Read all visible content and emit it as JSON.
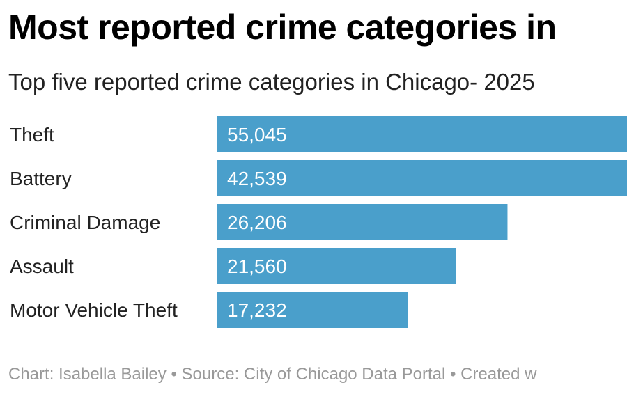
{
  "header": {
    "title": "Most reported crime categories in",
    "subtitle": "Top five reported crime categories in Chicago- 2025"
  },
  "footer": {
    "text": "Chart: Isabella Bailey • Source: City of Chicago Data Portal • Created w"
  },
  "colors": {
    "bar": "#4a9fcb"
  },
  "chart_data": {
    "type": "bar",
    "orientation": "horizontal",
    "title": "Most reported crime categories in",
    "subtitle": "Top five reported crime categories in Chicago- 2025",
    "categories": [
      "Theft",
      "Battery",
      "Criminal Damage",
      "Assault",
      "Motor Vehicle Theft"
    ],
    "values": [
      55045,
      42539,
      26206,
      21560,
      17232
    ],
    "value_labels": [
      "55,045",
      "42,539",
      "26,206",
      "21,560",
      "17,232"
    ],
    "xlim": [
      0,
      37000
    ],
    "grid": false,
    "legend": "none"
  }
}
